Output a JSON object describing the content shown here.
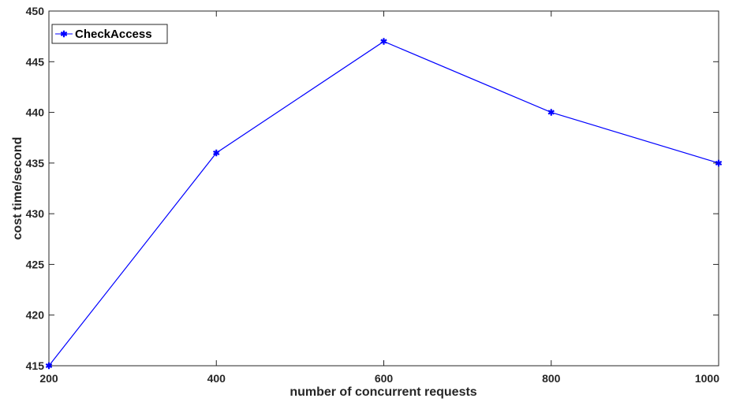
{
  "chart_data": {
    "type": "line",
    "title": "",
    "xlabel": "number of concurrent requests",
    "ylabel": "cost time/second",
    "xlim": [
      200,
      1000
    ],
    "ylim": [
      415,
      450
    ],
    "xticks": [
      "200",
      "400",
      "600",
      "800",
      "1000"
    ],
    "yticks": [
      "415",
      "420",
      "425",
      "430",
      "435",
      "440",
      "445",
      "450"
    ],
    "grid": false,
    "legend_position": "top-left",
    "series": [
      {
        "name": "CheckAccess",
        "color": "#0000ff",
        "marker": "star",
        "x": [
          200,
          400,
          600,
          800,
          1000
        ],
        "y": [
          415,
          436,
          447,
          440,
          435
        ]
      }
    ]
  }
}
